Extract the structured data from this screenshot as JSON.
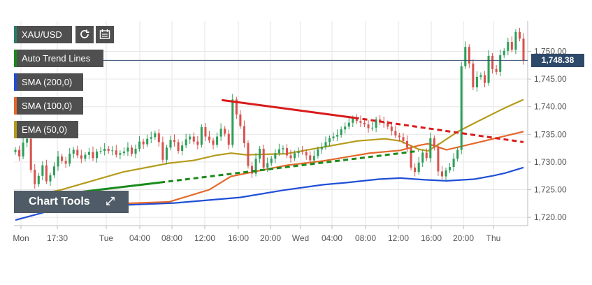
{
  "toolbar": {
    "symbol": "XAU/USD",
    "refresh_icon": "refresh-icon",
    "calendar_icon": "calendar-icon"
  },
  "indicators": [
    {
      "label": "Auto Trend Lines",
      "color": "#1a8a1a"
    },
    {
      "label": "SMA (200,0)",
      "color": "#1f4fd6"
    },
    {
      "label": "SMA (100,0)",
      "color": "#e4682a"
    },
    {
      "label": "EMA (50,0)",
      "color": "#b59b1a"
    }
  ],
  "chart_tools": {
    "label": "Chart Tools",
    "expand_icon": "expand-icon"
  },
  "price_tag": "1,748.38",
  "chart_data": {
    "type": "candlestick",
    "symbol": "XAU/USD",
    "x_tick_labels": [
      "Mon",
      "17:30",
      "Tue",
      "04:00",
      "08:00",
      "12:00",
      "16:00",
      "20:00",
      "Wed",
      "04:00",
      "08:00",
      "12:00",
      "16:00",
      "20:00",
      "Thu"
    ],
    "y_tick_labels": [
      "1,750.00",
      "1,745.00",
      "1,740.00",
      "1,735.00",
      "1,730.00",
      "1,725.00",
      "1,720.00"
    ],
    "ylim": [
      1718.5,
      1755.5
    ],
    "current_price": 1748.38,
    "grid": true,
    "legend_placement": "top-left",
    "candles_close": [
      1732.2,
      1731.0,
      1733.5,
      1734.2,
      1728.6,
      1726.0,
      1727.5,
      1729.4,
      1726.5,
      1727.6,
      1729.2,
      1731.0,
      1730.2,
      1729.7,
      1731.5,
      1732.2,
      1731.2,
      1730.6,
      1731.3,
      1731.8,
      1730.7,
      1731.9,
      1732.0,
      1732.4,
      1732.0,
      1732.1,
      1731.3,
      1731.6,
      1731.9,
      1732.6,
      1731.5,
      1732.4,
      1733.7,
      1733.2,
      1734.2,
      1734.5,
      1735.2,
      1733.6,
      1730.4,
      1732.6,
      1734.0,
      1733.6,
      1732.0,
      1733.0,
      1734.1,
      1734.6,
      1733.7,
      1733.1,
      1736.3,
      1734.6,
      1733.9,
      1733.1,
      1734.6,
      1736.0,
      1735.1,
      1733.1,
      1741.3,
      1738.6,
      1736.5,
      1733.4,
      1729.3,
      1727.9,
      1730.6,
      1732.4,
      1729.0,
      1729.8,
      1730.6,
      1731.6,
      1732.3,
      1732.5,
      1731.2,
      1730.7,
      1731.6,
      1731.9,
      1731.8,
      1731.2,
      1730.3,
      1731.1,
      1732.3,
      1732.7,
      1733.6,
      1734.3,
      1734.6,
      1734.9,
      1735.9,
      1736.4,
      1737.1,
      1737.9,
      1737.4,
      1737.1,
      1736.8,
      1736.1,
      1736.2,
      1737.7,
      1737.2,
      1737.0,
      1736.4,
      1735.6,
      1734.8,
      1734.5,
      1733.8,
      1732.6,
      1729.0,
      1728.2,
      1729.9,
      1731.7,
      1730.7,
      1734.3,
      1732.6,
      1728.3,
      1727.4,
      1728.5,
      1729.1,
      1730.6,
      1732.2,
      1747.3,
      1750.8,
      1747.8,
      1743.5,
      1745.4,
      1745.7,
      1744.3,
      1749.2,
      1746.8,
      1746.3,
      1749.3,
      1750.1,
      1751.7,
      1750.3,
      1753.5,
      1752.3,
      1748.4
    ],
    "series": [
      {
        "name": "SMA (200,0)",
        "color": "#1f4fd6",
        "x": [
          0,
          20,
          60,
          104,
          146,
          174,
          200,
          216,
          236,
          250,
          265,
          280,
          298,
          310,
          318,
          330
        ],
        "y": [
          1719.5,
          1721.0,
          1722.1,
          1722.6,
          1723.6,
          1724.9,
          1725.9,
          1726.3,
          1726.9,
          1727.1,
          1726.8,
          1726.6,
          1726.9,
          1727.5,
          1728.0,
          1729.0
        ]
      },
      {
        "name": "SMA (100,0)",
        "color": "#e4682a",
        "x": [
          0,
          30,
          60,
          100,
          126,
          140,
          156,
          176,
          200,
          230,
          250,
          262,
          268,
          280,
          300,
          318,
          330
        ],
        "y": [
          1722.0,
          1722.8,
          1722.4,
          1722.8,
          1725.0,
          1727.4,
          1728.3,
          1729.4,
          1730.2,
          1731.6,
          1732.1,
          1733.0,
          1733.3,
          1732.2,
          1733.5,
          1734.7,
          1735.5
        ]
      },
      {
        "name": "EMA (50,0)",
        "color": "#b59b1a",
        "x": [
          0,
          30,
          70,
          100,
          116,
          130,
          140,
          150,
          176,
          200,
          222,
          240,
          250,
          262,
          268,
          276,
          288,
          300,
          318,
          330
        ],
        "y": [
          1723.3,
          1725.0,
          1728.2,
          1729.8,
          1730.3,
          1731.2,
          1731.6,
          1731.3,
          1731.5,
          1732.7,
          1733.8,
          1734.2,
          1733.8,
          1732.3,
          1732.0,
          1733.4,
          1735.6,
          1737.3,
          1739.8,
          1741.3
        ]
      }
    ],
    "trend_lines": [
      {
        "color": "#d81b1b",
        "solid": [
          [
            134,
            1741.2
          ],
          [
            220,
            1738.0
          ]
        ],
        "dashed": [
          [
            220,
            1738.0
          ],
          [
            330,
            1733.6
          ]
        ]
      },
      {
        "color": "#1a8a1a",
        "solid": [
          [
            0,
            1723.2
          ],
          [
            94,
            1726.3
          ]
        ],
        "dashed": [
          [
            94,
            1726.3
          ],
          [
            262,
            1732.0
          ]
        ]
      }
    ]
  }
}
